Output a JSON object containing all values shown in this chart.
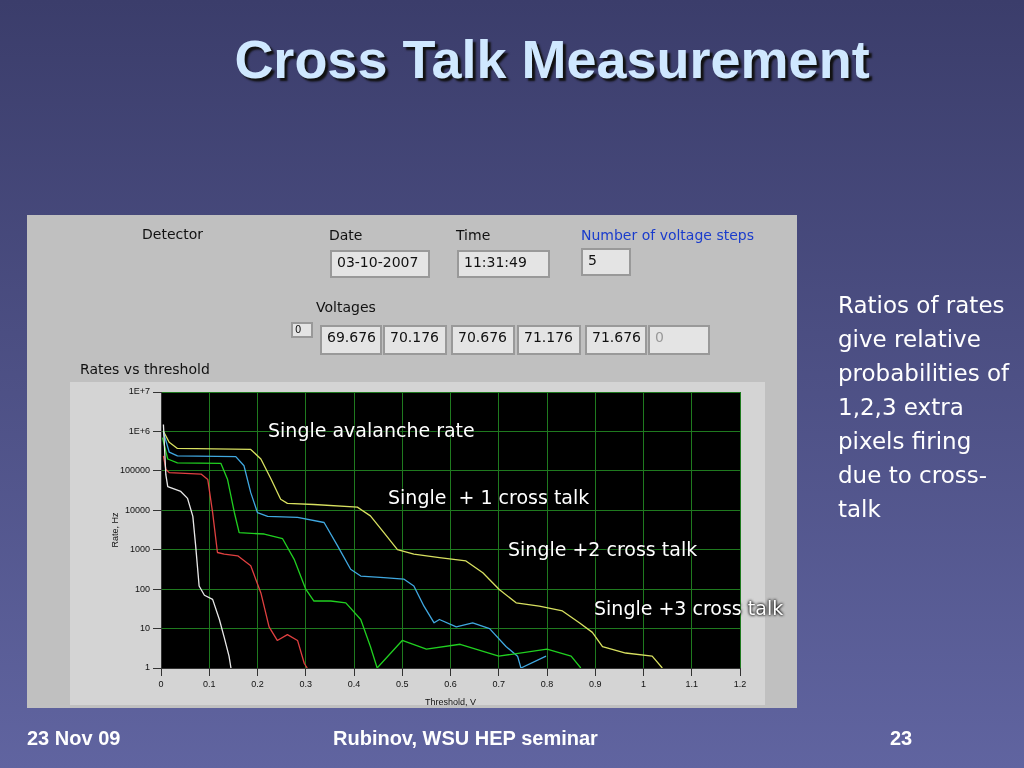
{
  "chart_data": {
    "type": "line",
    "title": "Cross Talk Measurement",
    "xlabel": "Threshold, V",
    "ylabel": "Rate, Hz",
    "xlim": [
      0,
      1.2
    ],
    "xticks": [
      0,
      0.1,
      0.2,
      0.3,
      0.4,
      0.5,
      0.6,
      0.7,
      0.8,
      0.9,
      1,
      1.1,
      1.2
    ],
    "ylim": [
      1,
      10000000
    ],
    "yticks": [
      1,
      10,
      100,
      1000,
      10000,
      100000,
      {
        "value": 1000000,
        "label": "1E+6"
      },
      {
        "value": 10000000,
        "label": "1E+7"
      }
    ],
    "log": "y",
    "grid": true,
    "legend": false,
    "marker": "none",
    "line_style": "solid",
    "series": [
      {
        "color": "#e8e8e8",
        "x": [
          0.005,
          0.01,
          0.014,
          0.041,
          0.055,
          0.066,
          0.072,
          0.079,
          0.09,
          0.107,
          0.121,
          0.131,
          0.141,
          0.145
        ],
        "values": [
          1500000,
          80000,
          40000,
          30000,
          20000,
          7000,
          1200,
          120,
          70,
          55,
          17,
          6,
          2,
          1
        ]
      },
      {
        "color": "#e04040",
        "x": [
          0.005,
          0.01,
          0.017,
          0.083,
          0.097,
          0.107,
          0.117,
          0.131,
          0.159,
          0.186,
          0.207,
          0.224,
          0.241,
          0.262,
          0.283,
          0.297,
          0.303
        ],
        "values": [
          240000,
          110000,
          90000,
          83000,
          60000,
          8700,
          850,
          770,
          700,
          390,
          80,
          11,
          5,
          7,
          5,
          1.3,
          1
        ]
      },
      {
        "color": "#20d020",
        "x": [
          0.003,
          0.014,
          0.034,
          0.124,
          0.138,
          0.152,
          0.162,
          0.214,
          0.252,
          0.276,
          0.3,
          0.317,
          0.352,
          0.383,
          0.414,
          0.434,
          0.448,
          0.5,
          0.55,
          0.62,
          0.7,
          0.8,
          0.85,
          0.87
        ],
        "values": [
          700000,
          200000,
          160000,
          155000,
          60000,
          8800,
          2700,
          2500,
          1900,
          570,
          100,
          50,
          50,
          45,
          17,
          3.5,
          1,
          5,
          3,
          4,
          2,
          3,
          2,
          1
        ]
      },
      {
        "color": "#40a8e0",
        "x": [
          0.005,
          0.017,
          0.034,
          0.155,
          0.172,
          0.186,
          0.2,
          0.221,
          0.283,
          0.338,
          0.366,
          0.393,
          0.414,
          0.462,
          0.503,
          0.524,
          0.545,
          0.566,
          0.577,
          0.612,
          0.646,
          0.681,
          0.715,
          0.739,
          0.746,
          0.798
        ],
        "values": [
          950000,
          300000,
          240000,
          230000,
          135000,
          28000,
          8700,
          7000,
          6600,
          4900,
          1250,
          320,
          215,
          195,
          180,
          120,
          37,
          14,
          17,
          11,
          14,
          10,
          3.5,
          2,
          1,
          2
        ]
      },
      {
        "color": "#d8e060",
        "x": [
          0.005,
          0.017,
          0.034,
          0.186,
          0.207,
          0.228,
          0.248,
          0.262,
          0.317,
          0.407,
          0.434,
          0.462,
          0.49,
          0.524,
          0.577,
          0.632,
          0.667,
          0.701,
          0.736,
          0.784,
          0.832,
          0.867,
          0.894,
          0.915,
          0.963,
          1.018,
          1.039
        ],
        "values": [
          1000000,
          530000,
          370000,
          350000,
          200000,
          62000,
          19000,
          15000,
          14000,
          12000,
          7200,
          2700,
          1000,
          770,
          630,
          520,
          260,
          98,
          45,
          37,
          28,
          14,
          8,
          3.5,
          2.4,
          2,
          1
        ]
      }
    ],
    "annotations": [
      "Single avalanche rate",
      "Single  + 1 cross talk",
      "Single +2 cross talk",
      "Single +3 cross talk",
      "Detector",
      "Date",
      "03-10-2007",
      "Time",
      "11:31:49",
      "Number of voltage steps",
      "5",
      "Voltages",
      "0",
      "69.676",
      "70.176",
      "70.676",
      "71.176",
      "71.676",
      "0",
      "Rates vs threshold",
      "Ratios of rates give relative probabilities of 1,2,3 extra pixels firing due to cross-talk",
      "23 Nov 09",
      "Rubinov, WSU HEP seminar",
      "23"
    ]
  }
}
